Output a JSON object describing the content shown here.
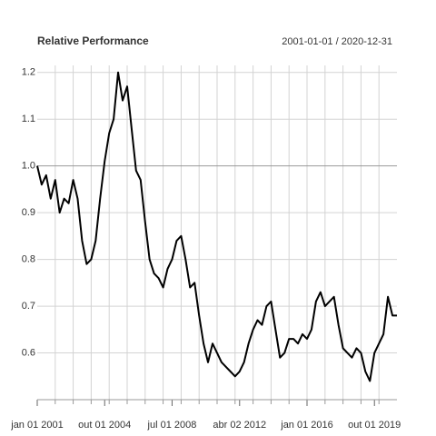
{
  "chart_data": {
    "type": "line",
    "title": "Relative Performance",
    "subtitle": "2001-01-01 / 2020-12-31",
    "x": [
      "2001-01-01",
      "2001-04-01",
      "2001-07-01",
      "2001-10-01",
      "2002-01-01",
      "2002-04-01",
      "2002-07-01",
      "2002-10-01",
      "2003-01-01",
      "2003-04-01",
      "2003-07-01",
      "2003-10-01",
      "2004-01-01",
      "2004-04-01",
      "2004-07-01",
      "2004-10-01",
      "2005-01-01",
      "2005-04-01",
      "2005-07-01",
      "2005-10-01",
      "2006-01-01",
      "2006-04-01",
      "2006-07-01",
      "2006-10-01",
      "2007-01-01",
      "2007-04-01",
      "2007-07-01",
      "2007-10-01",
      "2008-01-01",
      "2008-04-01",
      "2008-07-01",
      "2008-10-01",
      "2009-01-01",
      "2009-04-01",
      "2009-07-01",
      "2009-10-01",
      "2010-01-01",
      "2010-04-01",
      "2010-07-01",
      "2010-10-01",
      "2011-01-01",
      "2011-04-01",
      "2011-07-01",
      "2011-10-01",
      "2012-01-01",
      "2012-04-01",
      "2012-07-01",
      "2012-10-01",
      "2013-01-01",
      "2013-04-01",
      "2013-07-01",
      "2013-10-01",
      "2014-01-01",
      "2014-04-01",
      "2014-07-01",
      "2014-10-01",
      "2015-01-01",
      "2015-04-01",
      "2015-07-01",
      "2015-10-01",
      "2016-01-01",
      "2016-04-01",
      "2016-07-01",
      "2016-10-01",
      "2017-01-01",
      "2017-04-01",
      "2017-07-01",
      "2017-10-01",
      "2018-01-01",
      "2018-04-01",
      "2018-07-01",
      "2018-10-01",
      "2019-01-01",
      "2019-04-01",
      "2019-07-01",
      "2019-10-01",
      "2020-01-01",
      "2020-04-01",
      "2020-07-01",
      "2020-10-01",
      "2020-12-31"
    ],
    "series": [
      {
        "color": "#000000",
        "values": [
          1.0,
          0.96,
          0.98,
          0.93,
          0.97,
          0.9,
          0.93,
          0.92,
          0.97,
          0.93,
          0.84,
          0.79,
          0.8,
          0.84,
          0.93,
          1.01,
          1.07,
          1.1,
          1.2,
          1.14,
          1.17,
          1.08,
          0.99,
          0.97,
          0.88,
          0.8,
          0.77,
          0.76,
          0.74,
          0.78,
          0.8,
          0.84,
          0.85,
          0.8,
          0.74,
          0.75,
          0.68,
          0.62,
          0.58,
          0.62,
          0.6,
          0.58,
          0.57,
          0.56,
          0.55,
          0.56,
          0.58,
          0.62,
          0.65,
          0.67,
          0.66,
          0.7,
          0.71,
          0.65,
          0.59,
          0.6,
          0.63,
          0.63,
          0.62,
          0.64,
          0.63,
          0.65,
          0.71,
          0.73,
          0.7,
          0.71,
          0.72,
          0.66,
          0.61,
          0.6,
          0.59,
          0.61,
          0.6,
          0.56,
          0.54,
          0.6,
          0.62,
          0.64,
          0.72,
          0.68,
          0.68
        ]
      }
    ],
    "xlim": [
      "2001-01-01",
      "2020-12-31"
    ],
    "xticks": [
      {
        "value": "2001-01-01",
        "label": "jan 01 2001"
      },
      {
        "value": "2004-10-01",
        "label": "out 01 2004"
      },
      {
        "value": "2008-07-01",
        "label": "jul 01 2008"
      },
      {
        "value": "2012-04-02",
        "label": "abr 02 2012"
      },
      {
        "value": "2016-01-01",
        "label": "jan 01 2016"
      },
      {
        "value": "2019-10-01",
        "label": "out 01 2019"
      }
    ],
    "xgrid": [
      "2002-01-01",
      "2003-01-01",
      "2004-01-01",
      "2005-01-01",
      "2006-01-01",
      "2007-01-01",
      "2008-01-01",
      "2009-01-01",
      "2010-01-01",
      "2011-01-01",
      "2012-01-01",
      "2013-01-01",
      "2014-01-01",
      "2015-01-01",
      "2016-01-01",
      "2017-01-01",
      "2018-01-01",
      "2019-01-01",
      "2020-01-01"
    ],
    "ylim": [
      0.5,
      1.215
    ],
    "yticks": [
      0.6,
      0.7,
      0.8,
      0.9,
      {
        "value": 1,
        "label": "1.0"
      },
      1.1,
      1.2
    ],
    "baseline": 1,
    "grid": true
  }
}
